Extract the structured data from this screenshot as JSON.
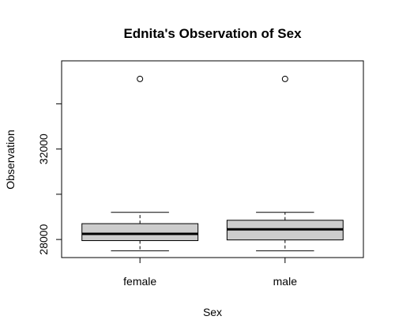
{
  "chart_data": {
    "type": "boxplot",
    "title": "Ednita's Observation of Sex",
    "xlabel": "Sex",
    "ylabel": "Observation",
    "categories": [
      "female",
      "male"
    ],
    "ylim": [
      27200,
      35900
    ],
    "yticks": [
      28000,
      32000
    ],
    "yticks_minor": [
      30000,
      34000
    ],
    "boxes": [
      {
        "category": "female",
        "whisker_low": 27500,
        "q1": 27950,
        "median": 28250,
        "q3": 28700,
        "whisker_high": 29200,
        "outliers": [
          35100
        ]
      },
      {
        "category": "male",
        "whisker_low": 27500,
        "q1": 27980,
        "median": 28450,
        "q3": 28850,
        "whisker_high": 29200,
        "outliers": [
          35100
        ]
      }
    ],
    "box_fill": "#cccccc",
    "line_color": "#000000",
    "grid": false,
    "legend": "none"
  }
}
